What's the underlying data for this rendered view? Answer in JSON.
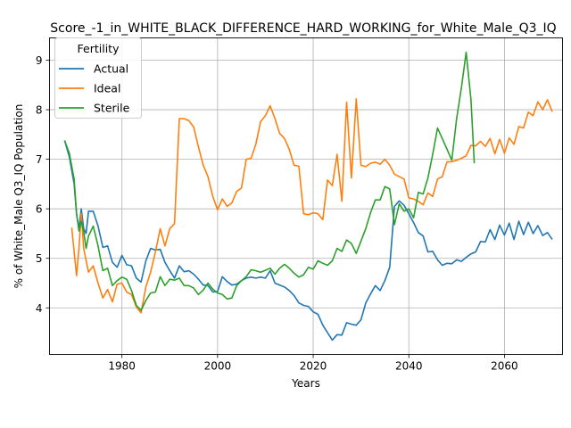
{
  "chart_data": {
    "type": "line",
    "title": "Score_-1_in_WHITE_BLACK_DIFFERENCE_HARD_WORKING_for_White_Male_Q3_IQ",
    "xlabel": "Years",
    "ylabel": "% of White_Male Q3_IQ Population",
    "xlim": [
      1964.85,
      2072.15
    ],
    "ylim": [
      3.06,
      9.45
    ],
    "xticks": [
      1980,
      2000,
      2020,
      2040,
      2060
    ],
    "yticks": [
      4,
      5,
      6,
      7,
      8,
      9
    ],
    "grid": true,
    "legend": {
      "title": "Fertility",
      "placement": "top-left"
    },
    "series": [
      {
        "name": "Actual",
        "color": "#1f77b4",
        "points": [
          [
            1968,
            7.38
          ],
          [
            1969,
            7.05
          ],
          [
            1970,
            6.5
          ],
          [
            1970.5,
            5.9
          ],
          [
            1971,
            5.6
          ],
          [
            1971.5,
            6.0
          ],
          [
            1972,
            5.6
          ],
          [
            1972.5,
            5.5
          ],
          [
            1973,
            5.95
          ],
          [
            1974,
            5.95
          ],
          [
            1975,
            5.65
          ],
          [
            1976,
            5.22
          ],
          [
            1977,
            5.25
          ],
          [
            1978,
            4.92
          ],
          [
            1979,
            4.82
          ],
          [
            1980,
            5.06
          ],
          [
            1981,
            4.87
          ],
          [
            1982,
            4.85
          ],
          [
            1983,
            4.6
          ],
          [
            1984,
            4.52
          ],
          [
            1985,
            4.95
          ],
          [
            1986,
            5.2
          ],
          [
            1987,
            5.17
          ],
          [
            1988,
            5.18
          ],
          [
            1989,
            4.92
          ],
          [
            1990,
            4.75
          ],
          [
            1991,
            4.6
          ],
          [
            1992,
            4.85
          ],
          [
            1993,
            4.73
          ],
          [
            1994,
            4.75
          ],
          [
            1995,
            4.68
          ],
          [
            1996,
            4.58
          ],
          [
            1997,
            4.46
          ],
          [
            1998,
            4.45
          ],
          [
            1999,
            4.32
          ],
          [
            2000,
            4.33
          ],
          [
            2001,
            4.63
          ],
          [
            2002,
            4.53
          ],
          [
            2003,
            4.46
          ],
          [
            2004,
            4.48
          ],
          [
            2005,
            4.55
          ],
          [
            2006,
            4.6
          ],
          [
            2007,
            4.62
          ],
          [
            2008,
            4.6
          ],
          [
            2009,
            4.62
          ],
          [
            2010,
            4.6
          ],
          [
            2011,
            4.75
          ],
          [
            2012,
            4.5
          ],
          [
            2013,
            4.46
          ],
          [
            2014,
            4.42
          ],
          [
            2015,
            4.35
          ],
          [
            2016,
            4.25
          ],
          [
            2017,
            4.1
          ],
          [
            2018,
            4.05
          ],
          [
            2019,
            4.03
          ],
          [
            2020,
            3.92
          ],
          [
            2021,
            3.87
          ],
          [
            2022,
            3.65
          ],
          [
            2023,
            3.5
          ],
          [
            2024,
            3.35
          ],
          [
            2025,
            3.46
          ],
          [
            2026,
            3.45
          ],
          [
            2027,
            3.7
          ],
          [
            2028,
            3.67
          ],
          [
            2029,
            3.65
          ],
          [
            2030,
            3.76
          ],
          [
            2031,
            4.1
          ],
          [
            2032,
            4.28
          ],
          [
            2033,
            4.45
          ],
          [
            2034,
            4.35
          ],
          [
            2035,
            4.55
          ],
          [
            2036,
            4.82
          ],
          [
            2037,
            6.05
          ],
          [
            2038,
            6.16
          ],
          [
            2039,
            6.07
          ],
          [
            2040,
            5.9
          ],
          [
            2041,
            5.72
          ],
          [
            2042,
            5.52
          ],
          [
            2043,
            5.45
          ],
          [
            2044,
            5.13
          ],
          [
            2045,
            5.14
          ],
          [
            2046,
            4.97
          ],
          [
            2047,
            4.86
          ],
          [
            2048,
            4.9
          ],
          [
            2049,
            4.89
          ],
          [
            2050,
            4.97
          ],
          [
            2051,
            4.94
          ],
          [
            2052,
            5.02
          ],
          [
            2053,
            5.09
          ],
          [
            2054,
            5.13
          ],
          [
            2055,
            5.34
          ],
          [
            2056,
            5.33
          ],
          [
            2057,
            5.58
          ],
          [
            2058,
            5.38
          ],
          [
            2059,
            5.67
          ],
          [
            2060,
            5.47
          ],
          [
            2061,
            5.71
          ],
          [
            2062,
            5.38
          ],
          [
            2063,
            5.75
          ],
          [
            2064,
            5.48
          ],
          [
            2065,
            5.73
          ],
          [
            2066,
            5.5
          ],
          [
            2067,
            5.66
          ],
          [
            2068,
            5.46
          ],
          [
            2069,
            5.52
          ],
          [
            2070,
            5.38
          ]
        ]
      },
      {
        "name": "Ideal",
        "color": "#ff7f0e",
        "points": [
          [
            1969.5,
            5.62
          ],
          [
            1970.5,
            4.65
          ],
          [
            1971,
            5.2
          ],
          [
            1971.5,
            5.9
          ],
          [
            1972,
            5.2
          ],
          [
            1973,
            4.72
          ],
          [
            1974,
            4.85
          ],
          [
            1975,
            4.5
          ],
          [
            1976,
            4.2
          ],
          [
            1977,
            4.37
          ],
          [
            1978,
            4.12
          ],
          [
            1979,
            4.48
          ],
          [
            1980,
            4.5
          ],
          [
            1981,
            4.32
          ],
          [
            1982,
            4.27
          ],
          [
            1983,
            4.02
          ],
          [
            1984,
            3.9
          ],
          [
            1985,
            4.42
          ],
          [
            1986,
            4.72
          ],
          [
            1987,
            5.13
          ],
          [
            1988,
            5.6
          ],
          [
            1989,
            5.25
          ],
          [
            1990,
            5.6
          ],
          [
            1991,
            5.7
          ],
          [
            1992,
            7.82
          ],
          [
            1993,
            7.82
          ],
          [
            1994,
            7.78
          ],
          [
            1995,
            7.65
          ],
          [
            1996,
            7.25
          ],
          [
            1997,
            6.88
          ],
          [
            1998,
            6.65
          ],
          [
            1999,
            6.25
          ],
          [
            2000,
            5.98
          ],
          [
            2001,
            6.2
          ],
          [
            2002,
            6.05
          ],
          [
            2003,
            6.12
          ],
          [
            2004,
            6.35
          ],
          [
            2005,
            6.42
          ],
          [
            2006,
            7.0
          ],
          [
            2007,
            7.02
          ],
          [
            2008,
            7.3
          ],
          [
            2009,
            7.76
          ],
          [
            2010,
            7.88
          ],
          [
            2011,
            8.08
          ],
          [
            2012,
            7.82
          ],
          [
            2013,
            7.52
          ],
          [
            2014,
            7.42
          ],
          [
            2015,
            7.2
          ],
          [
            2016,
            6.88
          ],
          [
            2017,
            6.86
          ],
          [
            2018,
            5.9
          ],
          [
            2019,
            5.88
          ],
          [
            2020,
            5.92
          ],
          [
            2021,
            5.9
          ],
          [
            2022,
            5.78
          ],
          [
            2023,
            6.58
          ],
          [
            2024,
            6.47
          ],
          [
            2025,
            7.1
          ],
          [
            2026,
            6.15
          ],
          [
            2027,
            8.15
          ],
          [
            2028,
            6.62
          ],
          [
            2029,
            8.22
          ],
          [
            2030,
            6.88
          ],
          [
            2031,
            6.85
          ],
          [
            2032,
            6.92
          ],
          [
            2033,
            6.94
          ],
          [
            2034,
            6.9
          ],
          [
            2035,
            7.0
          ],
          [
            2036,
            6.88
          ],
          [
            2037,
            6.7
          ],
          [
            2038,
            6.65
          ],
          [
            2039,
            6.6
          ],
          [
            2040,
            6.22
          ],
          [
            2041,
            6.2
          ],
          [
            2042,
            6.15
          ],
          [
            2043,
            6.08
          ],
          [
            2044,
            6.32
          ],
          [
            2045,
            6.25
          ],
          [
            2046,
            6.6
          ],
          [
            2047,
            6.65
          ],
          [
            2048,
            6.95
          ],
          [
            2049,
            6.95
          ],
          [
            2050,
            6.98
          ],
          [
            2051,
            7.02
          ],
          [
            2052,
            7.07
          ],
          [
            2053,
            7.28
          ],
          [
            2054,
            7.27
          ],
          [
            2055,
            7.36
          ],
          [
            2056,
            7.26
          ],
          [
            2057,
            7.42
          ],
          [
            2058,
            7.11
          ],
          [
            2059,
            7.4
          ],
          [
            2060,
            7.12
          ],
          [
            2061,
            7.43
          ],
          [
            2062,
            7.3
          ],
          [
            2063,
            7.66
          ],
          [
            2064,
            7.63
          ],
          [
            2065,
            7.95
          ],
          [
            2066,
            7.88
          ],
          [
            2067,
            8.16
          ],
          [
            2068,
            8.0
          ],
          [
            2069,
            8.2
          ],
          [
            2070,
            7.96
          ]
        ]
      },
      {
        "name": "Sterile",
        "color": "#2ca02c",
        "points": [
          [
            1968,
            7.38
          ],
          [
            1969,
            7.12
          ],
          [
            1970,
            6.6
          ],
          [
            1970.5,
            5.9
          ],
          [
            1971,
            5.55
          ],
          [
            1971.5,
            5.75
          ],
          [
            1972,
            5.55
          ],
          [
            1972.5,
            5.2
          ],
          [
            1973,
            5.45
          ],
          [
            1974,
            5.65
          ],
          [
            1975,
            5.25
          ],
          [
            1976,
            4.75
          ],
          [
            1977,
            4.8
          ],
          [
            1978,
            4.45
          ],
          [
            1979,
            4.55
          ],
          [
            1980,
            4.62
          ],
          [
            1981,
            4.58
          ],
          [
            1982,
            4.35
          ],
          [
            1983,
            4.05
          ],
          [
            1984,
            3.95
          ],
          [
            1985,
            4.15
          ],
          [
            1986,
            4.3
          ],
          [
            1987,
            4.32
          ],
          [
            1988,
            4.63
          ],
          [
            1989,
            4.45
          ],
          [
            1990,
            4.58
          ],
          [
            1991,
            4.56
          ],
          [
            1992,
            4.6
          ],
          [
            1993,
            4.45
          ],
          [
            1994,
            4.45
          ],
          [
            1995,
            4.4
          ],
          [
            1996,
            4.27
          ],
          [
            1997,
            4.36
          ],
          [
            1998,
            4.5
          ],
          [
            1999,
            4.38
          ],
          [
            2000,
            4.3
          ],
          [
            2001,
            4.27
          ],
          [
            2002,
            4.18
          ],
          [
            2003,
            4.2
          ],
          [
            2004,
            4.45
          ],
          [
            2005,
            4.55
          ],
          [
            2006,
            4.63
          ],
          [
            2007,
            4.77
          ],
          [
            2008,
            4.75
          ],
          [
            2009,
            4.72
          ],
          [
            2010,
            4.76
          ],
          [
            2011,
            4.8
          ],
          [
            2012,
            4.68
          ],
          [
            2013,
            4.8
          ],
          [
            2014,
            4.88
          ],
          [
            2015,
            4.8
          ],
          [
            2016,
            4.7
          ],
          [
            2017,
            4.62
          ],
          [
            2018,
            4.67
          ],
          [
            2019,
            4.82
          ],
          [
            2020,
            4.78
          ],
          [
            2021,
            4.95
          ],
          [
            2022,
            4.9
          ],
          [
            2023,
            4.86
          ],
          [
            2024,
            4.95
          ],
          [
            2025,
            5.2
          ],
          [
            2026,
            5.14
          ],
          [
            2027,
            5.37
          ],
          [
            2028,
            5.3
          ],
          [
            2029,
            5.1
          ],
          [
            2030,
            5.35
          ],
          [
            2031,
            5.6
          ],
          [
            2032,
            5.92
          ],
          [
            2033,
            6.18
          ],
          [
            2034,
            6.18
          ],
          [
            2035,
            6.45
          ],
          [
            2036,
            6.4
          ],
          [
            2037,
            5.68
          ],
          [
            2038,
            6.1
          ],
          [
            2039,
            5.95
          ],
          [
            2040,
            6.0
          ],
          [
            2041,
            5.82
          ],
          [
            2042,
            6.33
          ],
          [
            2043,
            6.3
          ],
          [
            2044,
            6.62
          ],
          [
            2045,
            7.1
          ],
          [
            2046,
            7.63
          ],
          [
            2047,
            7.42
          ],
          [
            2048,
            7.2
          ],
          [
            2049,
            6.98
          ],
          [
            2050,
            7.82
          ],
          [
            2051,
            8.45
          ],
          [
            2052,
            9.16
          ],
          [
            2053,
            8.2
          ],
          [
            2053.7,
            6.92
          ]
        ]
      }
    ]
  }
}
